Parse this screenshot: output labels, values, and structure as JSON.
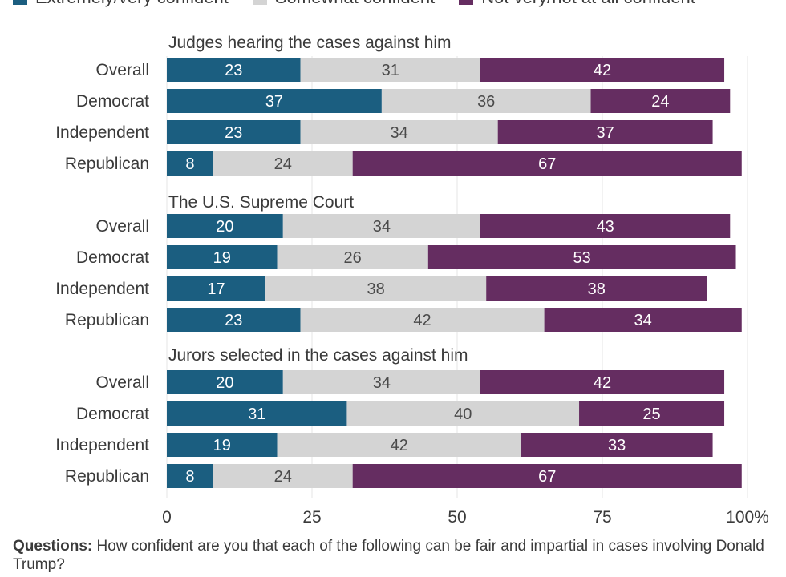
{
  "chart_data": {
    "type": "bar",
    "orientation": "horizontal",
    "stacked": true,
    "xlim": [
      0,
      100
    ],
    "x_ticks": [
      "0",
      "25",
      "50",
      "75",
      "100%"
    ],
    "tick_values": [
      0,
      25,
      50,
      75,
      100
    ],
    "grid": true,
    "legend_position": "top",
    "series": [
      {
        "name": "Extremely/very confident",
        "color": "#1b5e80"
      },
      {
        "name": "Somewhat confident",
        "color": "#d4d4d4"
      },
      {
        "name": "Not very/not at all confident",
        "color": "#652d61"
      }
    ],
    "groups": [
      {
        "title": "Judges hearing the cases against him",
        "rows": [
          {
            "label": "Overall",
            "values": [
              23,
              31,
              42
            ]
          },
          {
            "label": "Democrat",
            "values": [
              37,
              36,
              24
            ]
          },
          {
            "label": "Independent",
            "values": [
              23,
              34,
              37
            ]
          },
          {
            "label": "Republican",
            "values": [
              8,
              24,
              67
            ]
          }
        ]
      },
      {
        "title": "The U.S. Supreme Court",
        "rows": [
          {
            "label": "Overall",
            "values": [
              20,
              34,
              43
            ]
          },
          {
            "label": "Democrat",
            "values": [
              19,
              26,
              53
            ]
          },
          {
            "label": "Independent",
            "values": [
              17,
              38,
              38
            ]
          },
          {
            "label": "Republican",
            "values": [
              23,
              42,
              34
            ]
          }
        ]
      },
      {
        "title": "Jurors selected in the cases against him",
        "rows": [
          {
            "label": "Overall",
            "values": [
              20,
              34,
              42
            ]
          },
          {
            "label": "Democrat",
            "values": [
              31,
              40,
              25
            ]
          },
          {
            "label": "Independent",
            "values": [
              19,
              42,
              33
            ]
          },
          {
            "label": "Republican",
            "values": [
              8,
              24,
              67
            ]
          }
        ]
      }
    ]
  },
  "footnote": {
    "label": "Questions:",
    "text": " How confident are you that each of the following can be fair and impartial in cases involving Donald Trump?"
  }
}
